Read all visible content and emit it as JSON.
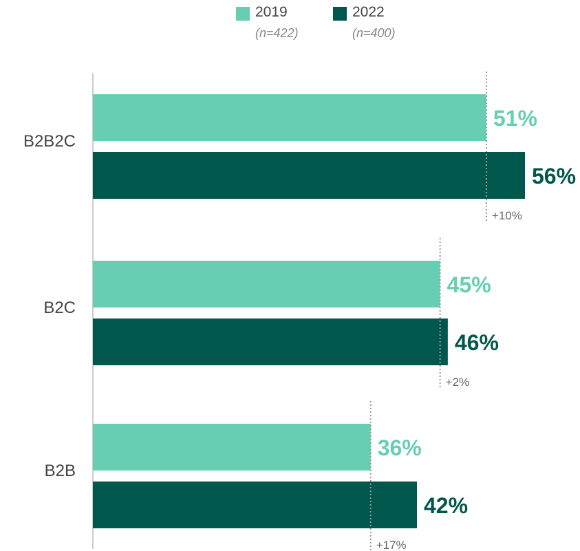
{
  "chart_data": {
    "type": "bar",
    "orientation": "horizontal",
    "categories": [
      "B2B2C",
      "B2C",
      "B2B"
    ],
    "series": [
      {
        "name": "2019",
        "sample": "(n=422)",
        "values": [
          51,
          45,
          36
        ],
        "labels": [
          "51%",
          "45%",
          "36%"
        ],
        "color": "#68CEB3"
      },
      {
        "name": "2022",
        "sample": "(n=400)",
        "values": [
          56,
          46,
          42
        ],
        "labels": [
          "56%",
          "46%",
          "42%"
        ],
        "color": "#02574C"
      }
    ],
    "changes": [
      "+10%",
      "+2%",
      "+17%"
    ],
    "xlim": [
      0,
      56
    ],
    "legend_position": "top-center",
    "grid": false
  }
}
